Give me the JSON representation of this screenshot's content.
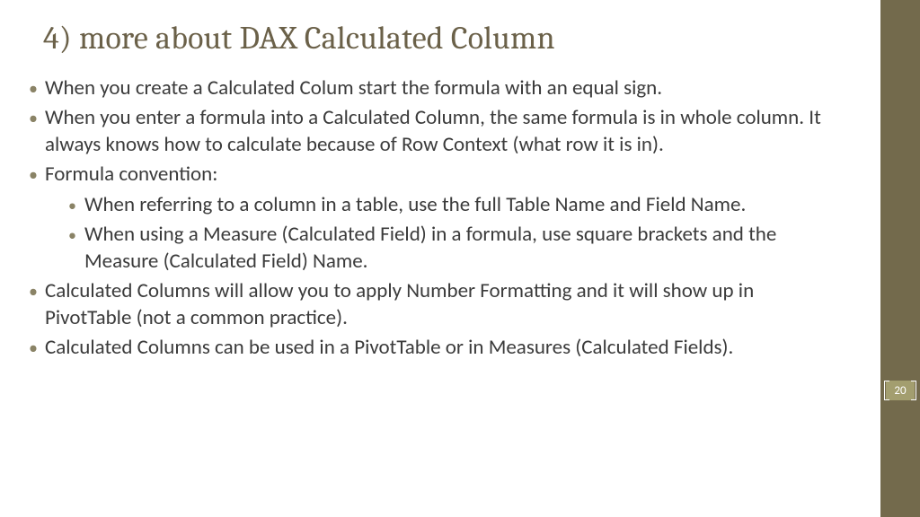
{
  "slide": {
    "title": "4) more about DAX Calculated Column",
    "title_color": "#6b6149",
    "title_fontsize": 36,
    "body_color": "#3b3b3b",
    "body_fontsize": 23,
    "bullet_color": "#8a8366",
    "bullets": [
      {
        "text": "When you create a Calculated Colum start the formula with an equal sign."
      },
      {
        "text": "When you enter a formula into a Calculated Column, the same formula is in whole column. It always knows how to calculate because of Row Context (what row it is in)."
      },
      {
        "text": "Formula convention:",
        "children": [
          {
            "text": "When referring to a column in a table, use the full Table Name and Field Name."
          },
          {
            "text": "When using a Measure (Calculated Field) in a formula, use square brackets and the Measure (Calculated Field) Name."
          }
        ]
      },
      {
        "text": "Calculated Columns will allow you to apply Number Formatting and it will show up in PivotTable (not a common practice)."
      },
      {
        "text": "Calculated Columns can be used in a PivotTable or in Measures (Calculated Fields)."
      }
    ]
  },
  "sidebar": {
    "color": "#736a4c",
    "width": 44
  },
  "page_number": {
    "value": "20",
    "box_bg": "#a39e6f",
    "box_border": "#ffffff",
    "text_color": "#ffffff",
    "fontsize": 13
  },
  "background_color": "#ffffff"
}
